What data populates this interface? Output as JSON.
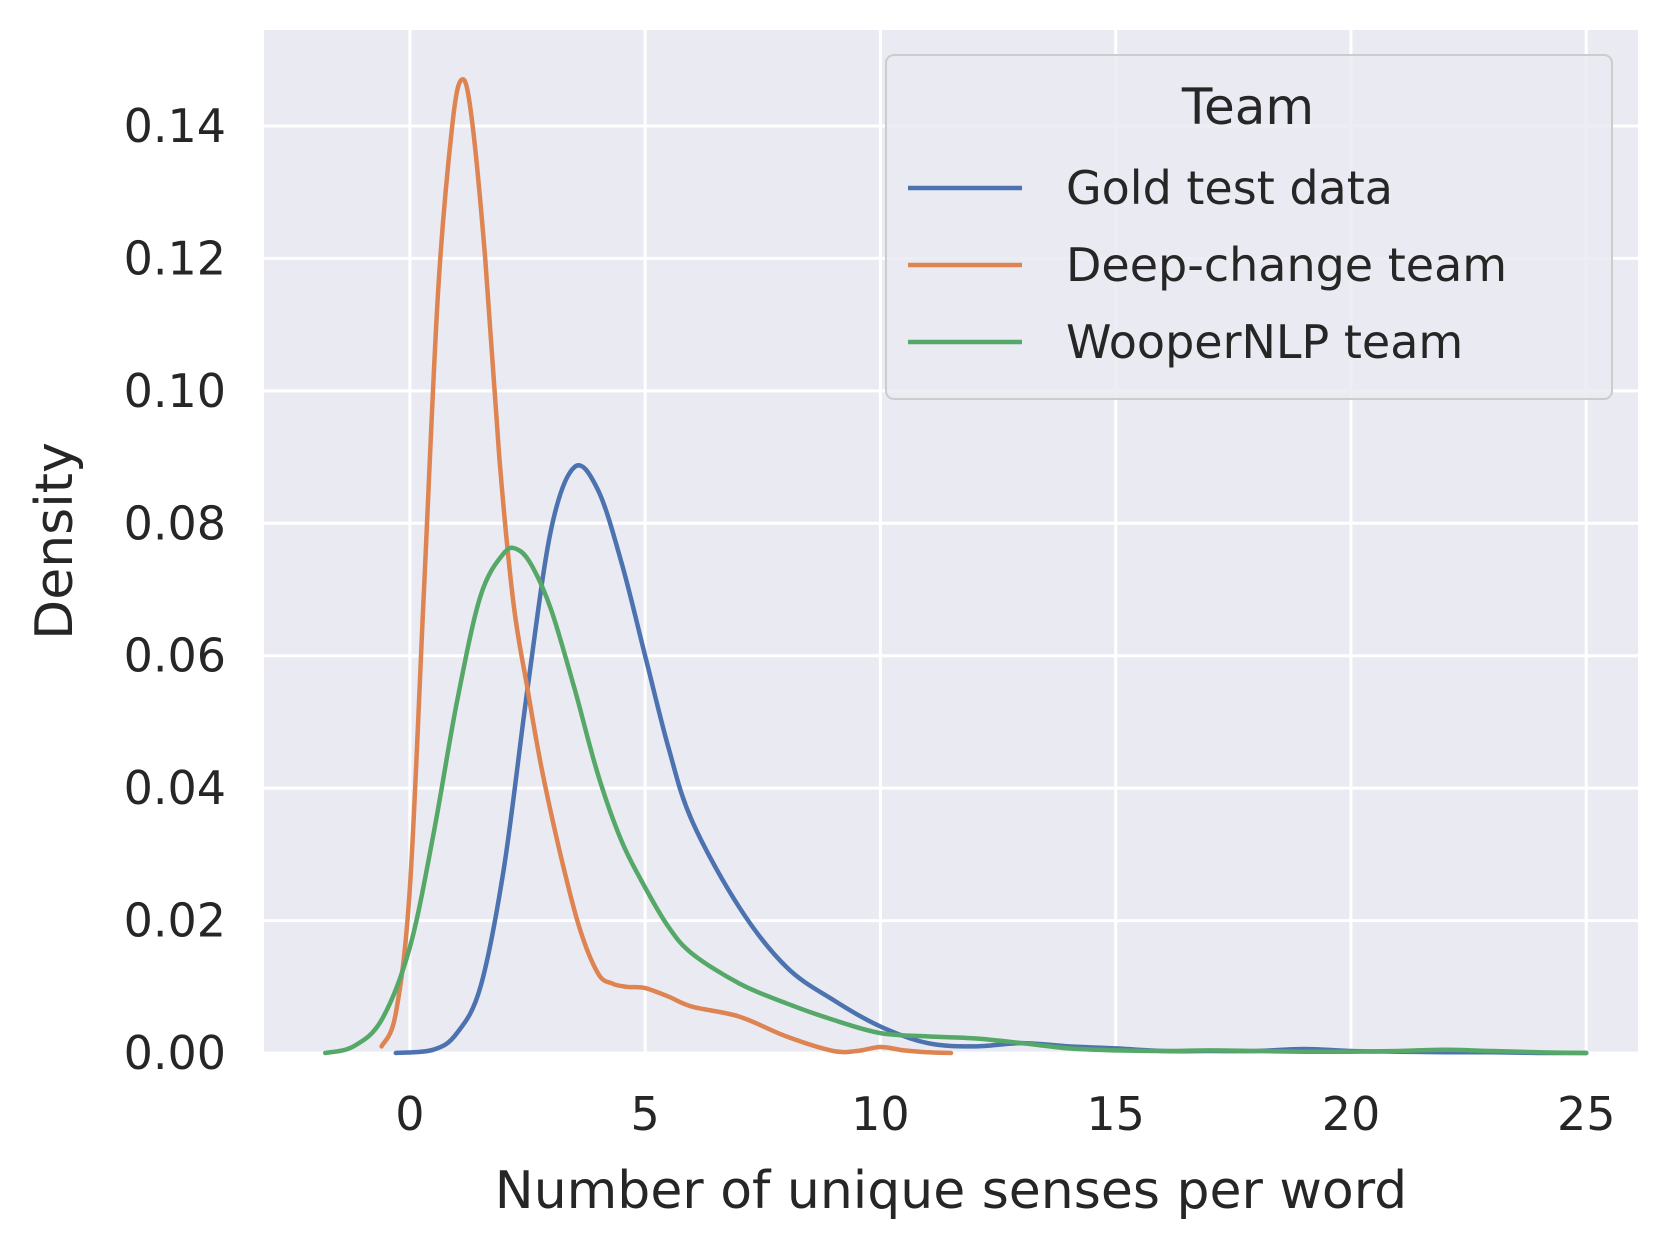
{
  "chart_data": {
    "type": "line",
    "title": "",
    "xlabel": "Number of unique senses per word",
    "ylabel": "Density",
    "xlim": [
      -3.1,
      26.1
    ],
    "ylim": [
      0,
      0.1545
    ],
    "x_ticks": [
      0,
      5,
      10,
      15,
      20,
      25
    ],
    "x_tick_labels": [
      "0",
      "5",
      "10",
      "15",
      "20",
      "25"
    ],
    "y_ticks": [
      0.0,
      0.02,
      0.04,
      0.06,
      0.08,
      0.1,
      0.12,
      0.14
    ],
    "y_tick_labels": [
      "0.00",
      "0.02",
      "0.04",
      "0.06",
      "0.08",
      "0.10",
      "0.12",
      "0.14"
    ],
    "grid": true,
    "legend": {
      "title": "Team",
      "position": "top-right"
    },
    "series": [
      {
        "name": "Gold test data",
        "color": "#4c72b0",
        "x": [
          -0.3,
          0.5,
          1.0,
          1.5,
          2.0,
          2.5,
          3.0,
          3.5,
          4.0,
          4.5,
          5.0,
          5.5,
          6.0,
          7.0,
          8.0,
          9.0,
          10.0,
          11.0,
          12.0,
          13.0,
          14.0,
          15.0,
          16.0,
          17.0,
          18.0,
          19.0,
          20.0,
          21.0,
          22.0,
          23.0,
          24.0,
          25.0
        ],
        "y": [
          0.0,
          0.0005,
          0.003,
          0.01,
          0.028,
          0.055,
          0.079,
          0.0885,
          0.085,
          0.074,
          0.06,
          0.046,
          0.035,
          0.022,
          0.013,
          0.008,
          0.004,
          0.0015,
          0.001,
          0.0015,
          0.001,
          0.0007,
          0.0003,
          0.0003,
          0.0003,
          0.0006,
          0.0003,
          0.0002,
          0.0001,
          0.0001,
          0.0,
          0.0
        ]
      },
      {
        "name": "Deep-change team",
        "color": "#dd8452",
        "x": [
          -0.6,
          -0.3,
          0.0,
          0.3,
          0.6,
          0.9,
          1.1,
          1.3,
          1.6,
          1.9,
          2.2,
          2.5,
          2.8,
          3.2,
          3.6,
          4.0,
          4.3,
          4.6,
          5.0,
          5.5,
          6.0,
          7.0,
          8.0,
          9.0,
          9.5,
          10.0,
          10.5,
          11.0,
          11.5
        ],
        "y": [
          0.001,
          0.006,
          0.025,
          0.07,
          0.115,
          0.14,
          0.147,
          0.142,
          0.12,
          0.09,
          0.068,
          0.055,
          0.043,
          0.03,
          0.019,
          0.012,
          0.0105,
          0.01,
          0.0098,
          0.0085,
          0.007,
          0.0055,
          0.0025,
          0.0003,
          0.0003,
          0.0009,
          0.0004,
          0.0001,
          0.0
        ]
      },
      {
        "name": "WooperNLP team",
        "color": "#55a868",
        "x": [
          -1.8,
          -1.2,
          -0.6,
          0.0,
          0.5,
          1.0,
          1.5,
          2.0,
          2.3,
          2.6,
          3.0,
          3.5,
          4.0,
          4.5,
          5.0,
          5.5,
          6.0,
          7.0,
          8.0,
          9.0,
          10.0,
          11.0,
          12.0,
          13.0,
          14.0,
          15.0,
          16.0,
          17.0,
          18.0,
          19.0,
          20.0,
          21.0,
          22.0,
          23.0,
          24.0,
          25.0
        ],
        "y": [
          0.0,
          0.001,
          0.005,
          0.016,
          0.033,
          0.053,
          0.069,
          0.0755,
          0.076,
          0.0735,
          0.067,
          0.055,
          0.042,
          0.032,
          0.025,
          0.019,
          0.015,
          0.0105,
          0.0075,
          0.005,
          0.003,
          0.0025,
          0.0022,
          0.0015,
          0.0007,
          0.0004,
          0.0003,
          0.0004,
          0.0003,
          0.0002,
          0.0002,
          0.0003,
          0.0005,
          0.0003,
          0.0001,
          0.0
        ]
      }
    ]
  }
}
